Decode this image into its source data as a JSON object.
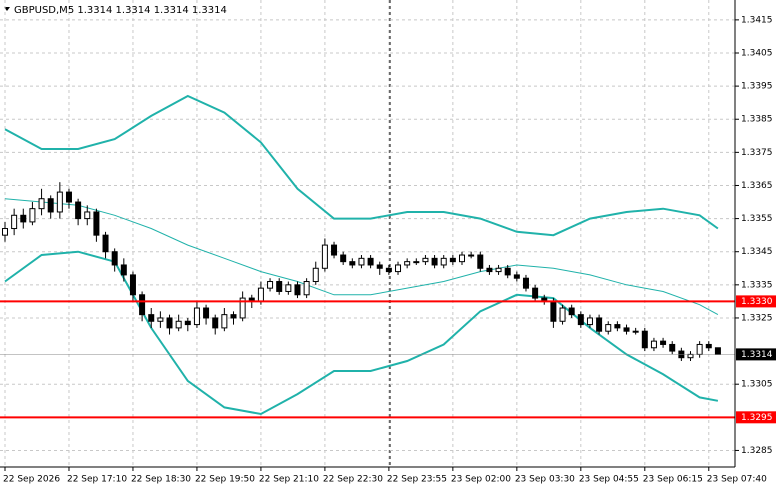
{
  "chart_data": {
    "type": "candlestick",
    "title": "GBPUSD,M5  1.3314 1.3314 1.3314 1.3314",
    "open": [
      1.335,
      1.3352,
      1.3356,
      1.3354,
      1.3358,
      1.3361,
      1.3357,
      1.3363,
      1.336,
      1.3355,
      1.3357,
      1.335,
      1.3345,
      1.3341,
      1.3338,
      1.3332,
      1.3326,
      1.3324,
      1.3325,
      1.3322,
      1.3324,
      1.3323,
      1.3328,
      1.3325,
      1.3322,
      1.3326,
      1.3325,
      1.3331,
      1.333,
      1.3334,
      1.3336,
      1.3333,
      1.3335,
      1.3332,
      1.3336,
      1.334,
      1.3347,
      1.3344,
      1.3342,
      1.3341,
      1.3343,
      1.3341,
      1.334,
      1.3339,
      1.3341,
      1.3342,
      1.3342,
      1.3343,
      1.3341,
      1.3343,
      1.3342,
      1.3344,
      1.3344,
      1.334,
      1.3339,
      1.334,
      1.3338,
      1.3337,
      1.3334,
      1.3331,
      1.333,
      1.3324,
      1.3328,
      1.3326,
      1.3323,
      1.3325,
      1.3321,
      1.3323,
      1.3322,
      1.3321,
      1.3321,
      1.3316,
      1.3318,
      1.3317,
      1.3315,
      1.3313,
      1.3314,
      1.3317,
      1.3316
    ],
    "high": [
      1.3354,
      1.3358,
      1.3358,
      1.336,
      1.3364,
      1.3362,
      1.3366,
      1.3364,
      1.3361,
      1.3359,
      1.3358,
      1.3351,
      1.3346,
      1.3343,
      1.3339,
      1.3333,
      1.3328,
      1.3327,
      1.3326,
      1.3326,
      1.3325,
      1.333,
      1.3329,
      1.3326,
      1.3328,
      1.3327,
      1.3333,
      1.3332,
      1.3336,
      1.3337,
      1.3337,
      1.3336,
      1.3336,
      1.3337,
      1.3342,
      1.3349,
      1.3348,
      1.3345,
      1.3343,
      1.3344,
      1.3344,
      1.3342,
      1.3341,
      1.3342,
      1.3343,
      1.3343,
      1.3344,
      1.3344,
      1.3344,
      1.3344,
      1.3345,
      1.3345,
      1.3345,
      1.3341,
      1.3341,
      1.3341,
      1.3339,
      1.3338,
      1.3335,
      1.3332,
      1.3331,
      1.3329,
      1.3329,
      1.3327,
      1.3326,
      1.3326,
      1.3324,
      1.3324,
      1.3323,
      1.3322,
      1.3322,
      1.3319,
      1.3319,
      1.3318,
      1.3316,
      1.3315,
      1.3318,
      1.3318,
      1.3316
    ],
    "low": [
      1.3348,
      1.335,
      1.3352,
      1.3353,
      1.3356,
      1.3355,
      1.3355,
      1.3358,
      1.3353,
      1.3353,
      1.3348,
      1.3343,
      1.3339,
      1.3336,
      1.333,
      1.3324,
      1.3322,
      1.3322,
      1.332,
      1.3321,
      1.3321,
      1.3322,
      1.3323,
      1.332,
      1.3321,
      1.3323,
      1.3324,
      1.3328,
      1.3329,
      1.3333,
      1.3332,
      1.3332,
      1.3331,
      1.3331,
      1.3335,
      1.3339,
      1.3343,
      1.3341,
      1.334,
      1.334,
      1.334,
      1.3338,
      1.3338,
      1.3338,
      1.334,
      1.3341,
      1.3341,
      1.334,
      1.334,
      1.3341,
      1.3341,
      1.3343,
      1.3339,
      1.3338,
      1.3338,
      1.3337,
      1.3336,
      1.3333,
      1.333,
      1.3329,
      1.3322,
      1.3323,
      1.3325,
      1.3322,
      1.3322,
      1.332,
      1.332,
      1.3321,
      1.332,
      1.332,
      1.3315,
      1.3315,
      1.3316,
      1.3314,
      1.3312,
      1.3312,
      1.3313,
      1.3315,
      1.3314
    ],
    "close": [
      1.3352,
      1.3356,
      1.3354,
      1.3358,
      1.3361,
      1.3357,
      1.3363,
      1.336,
      1.3355,
      1.3357,
      1.335,
      1.3345,
      1.3341,
      1.3338,
      1.3332,
      1.3326,
      1.3324,
      1.3325,
      1.3322,
      1.3324,
      1.3323,
      1.3328,
      1.3325,
      1.3322,
      1.3326,
      1.3325,
      1.3331,
      1.333,
      1.3334,
      1.3336,
      1.3333,
      1.3335,
      1.3332,
      1.3336,
      1.334,
      1.3347,
      1.3344,
      1.3342,
      1.3341,
      1.3343,
      1.3341,
      1.334,
      1.3339,
      1.3341,
      1.3342,
      1.3342,
      1.3343,
      1.3341,
      1.3343,
      1.3342,
      1.3344,
      1.3344,
      1.334,
      1.3339,
      1.334,
      1.3338,
      1.3337,
      1.3334,
      1.3331,
      1.333,
      1.3324,
      1.3328,
      1.3326,
      1.3323,
      1.3325,
      1.3321,
      1.3323,
      1.3322,
      1.3321,
      1.3321,
      1.3316,
      1.3318,
      1.3317,
      1.3315,
      1.3313,
      1.3314,
      1.3317,
      1.3316,
      1.3314
    ],
    "overlay_x": [
      0,
      4,
      8,
      12,
      16,
      20,
      24,
      28,
      32,
      36,
      40,
      44,
      48,
      52,
      56,
      60,
      64,
      68,
      72,
      76,
      78
    ],
    "series": [
      {
        "color": "#20b2aa",
        "width": 2,
        "values": [
          1.3382,
          1.3376,
          1.3376,
          1.3379,
          1.3386,
          1.3392,
          1.3387,
          1.3378,
          1.3364,
          1.3355,
          1.3355,
          1.3357,
          1.3357,
          1.3355,
          1.3351,
          1.335,
          1.3355,
          1.3357,
          1.3358,
          1.3356,
          1.3352
        ]
      },
      {
        "color": "#20b2aa",
        "width": 1,
        "values": [
          1.3361,
          1.336,
          1.3359,
          1.3356,
          1.3352,
          1.3347,
          1.3343,
          1.3339,
          1.3336,
          1.3332,
          1.3332,
          1.3334,
          1.3336,
          1.3339,
          1.3341,
          1.334,
          1.3338,
          1.3335,
          1.3333,
          1.3329,
          1.3326
        ]
      },
      {
        "color": "#20b2aa",
        "width": 2,
        "values": [
          1.3336,
          1.3344,
          1.3345,
          1.3342,
          1.3322,
          1.3306,
          1.3298,
          1.3296,
          1.3302,
          1.3309,
          1.3309,
          1.3312,
          1.3317,
          1.3327,
          1.3332,
          1.3331,
          1.3322,
          1.3314,
          1.3308,
          1.3301,
          1.33
        ]
      }
    ],
    "ylim": [
      1.328,
      1.3421
    ],
    "yticks": [
      1.3285,
      1.3305,
      1.3325,
      1.3335,
      1.3345,
      1.3355,
      1.3365,
      1.3375,
      1.3385,
      1.3395,
      1.3405,
      1.3415
    ],
    "xticks": [
      {
        "value": 0,
        "label": "22 Sep 2026"
      },
      {
        "value": 7,
        "label": "22 Sep 17:10"
      },
      {
        "value": 14,
        "label": "22 Sep 18:30"
      },
      {
        "value": 21,
        "label": "22 Sep 19:50"
      },
      {
        "value": 28,
        "label": "22 Sep 21:10"
      },
      {
        "value": 35,
        "label": "22 Sep 22:30"
      },
      {
        "value": 42,
        "label": "22 Sep 23:55"
      },
      {
        "value": 49,
        "label": "23 Sep 02:00"
      },
      {
        "value": 56,
        "label": "23 Sep 03:30"
      },
      {
        "value": 63,
        "label": "23 Sep 04:55"
      },
      {
        "value": 70,
        "label": "23 Sep 06:15"
      },
      {
        "value": 77,
        "label": "23 Sep 07:40"
      }
    ],
    "levels": [
      {
        "value": 1.333,
        "label": "1.3330",
        "color": "#ff0000"
      },
      {
        "value": 1.3295,
        "label": "1.3295",
        "color": "#ff0000"
      }
    ],
    "last_price": 1.3314,
    "grid": true
  }
}
